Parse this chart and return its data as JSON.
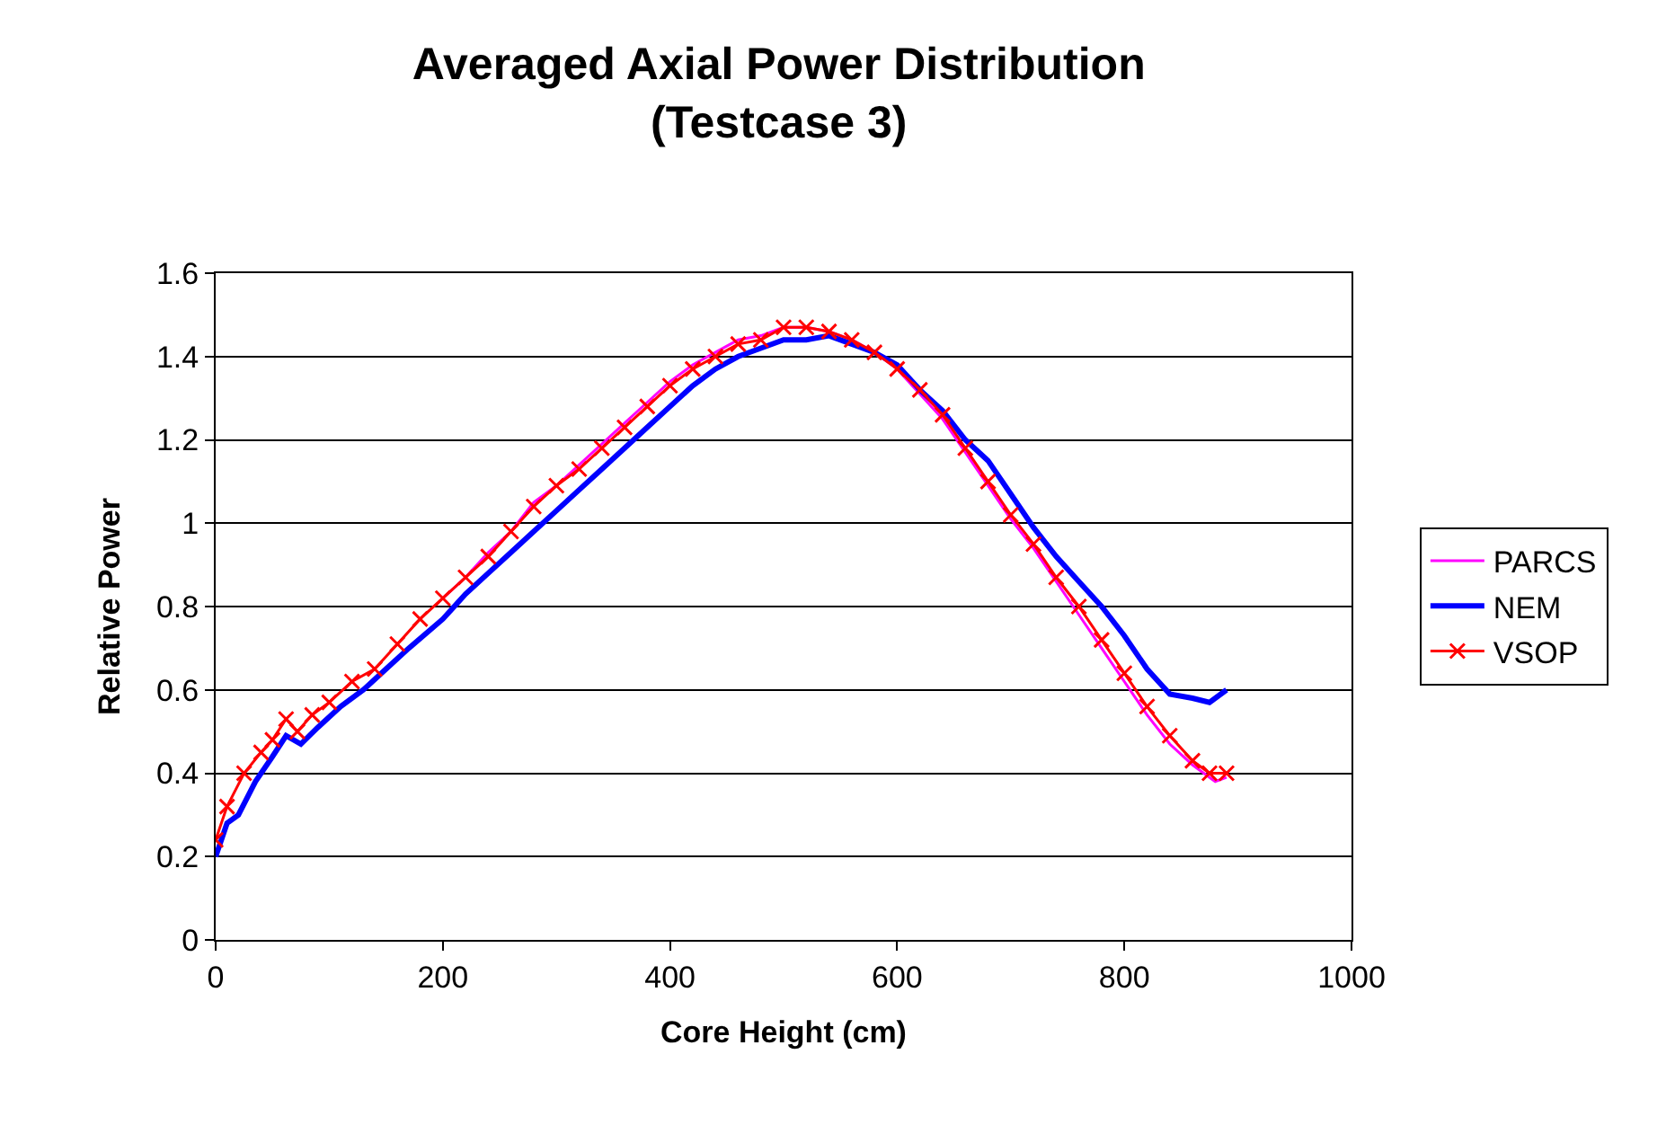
{
  "chart_data": {
    "type": "line",
    "title": "Averaged Axial Power Distribution\n(Testcase 3)",
    "xlabel": "Core Height (cm)",
    "ylabel": "Relative Power",
    "xlim": [
      0,
      1000
    ],
    "xticks": [
      0,
      200,
      400,
      600,
      800,
      1000
    ],
    "ylim": [
      0,
      1.6
    ],
    "yticks": [
      0,
      0.2,
      0.4,
      0.6,
      0.8,
      1,
      1.2,
      1.4,
      1.6
    ],
    "grid": "y",
    "legend": "right",
    "series": [
      {
        "name": "PARCS",
        "color": "#ff00ff",
        "marker": "none",
        "x": [
          200,
          220,
          240,
          260,
          280,
          300,
          320,
          340,
          360,
          380,
          400,
          420,
          440,
          460,
          480,
          500,
          520,
          540,
          560,
          580,
          600,
          620,
          640,
          660,
          680,
          700,
          720,
          740,
          760,
          780,
          800,
          820,
          840,
          860,
          880,
          890
        ],
        "values": [
          0.82,
          0.87,
          0.93,
          0.98,
          1.05,
          1.09,
          1.14,
          1.19,
          1.24,
          1.29,
          1.34,
          1.38,
          1.41,
          1.44,
          1.45,
          1.47,
          1.47,
          1.46,
          1.44,
          1.41,
          1.37,
          1.31,
          1.25,
          1.17,
          1.09,
          1.01,
          0.94,
          0.86,
          0.78,
          0.7,
          0.62,
          0.54,
          0.47,
          0.42,
          0.38,
          0.39
        ]
      },
      {
        "name": "NEM",
        "color": "#0000ff",
        "marker": "none",
        "x": [
          0,
          10,
          20,
          35,
          50,
          62,
          75,
          90,
          110,
          130,
          150,
          170,
          200,
          220,
          240,
          260,
          280,
          300,
          320,
          340,
          360,
          380,
          400,
          420,
          440,
          460,
          480,
          500,
          520,
          540,
          560,
          580,
          600,
          620,
          640,
          660,
          680,
          700,
          720,
          740,
          760,
          780,
          800,
          820,
          840,
          860,
          875,
          890
        ],
        "values": [
          0.2,
          0.28,
          0.3,
          0.38,
          0.44,
          0.49,
          0.47,
          0.51,
          0.56,
          0.6,
          0.65,
          0.7,
          0.77,
          0.83,
          0.88,
          0.93,
          0.98,
          1.03,
          1.08,
          1.13,
          1.18,
          1.23,
          1.28,
          1.33,
          1.37,
          1.4,
          1.42,
          1.44,
          1.44,
          1.45,
          1.43,
          1.41,
          1.38,
          1.32,
          1.27,
          1.2,
          1.15,
          1.07,
          0.99,
          0.92,
          0.86,
          0.8,
          0.73,
          0.65,
          0.59,
          0.58,
          0.57,
          0.6
        ]
      },
      {
        "name": "VSOP",
        "color": "#ff0000",
        "marker": "cross",
        "x": [
          0,
          10,
          25,
          40,
          50,
          62,
          72,
          85,
          100,
          120,
          140,
          160,
          180,
          200,
          220,
          240,
          260,
          280,
          300,
          320,
          340,
          360,
          380,
          400,
          420,
          440,
          460,
          480,
          500,
          520,
          540,
          560,
          580,
          600,
          620,
          640,
          660,
          680,
          700,
          720,
          740,
          760,
          780,
          800,
          820,
          840,
          860,
          875,
          890
        ],
        "values": [
          0.24,
          0.32,
          0.4,
          0.45,
          0.48,
          0.53,
          0.5,
          0.54,
          0.57,
          0.62,
          0.65,
          0.71,
          0.77,
          0.82,
          0.87,
          0.92,
          0.98,
          1.04,
          1.09,
          1.13,
          1.18,
          1.23,
          1.28,
          1.33,
          1.37,
          1.4,
          1.43,
          1.44,
          1.47,
          1.47,
          1.46,
          1.44,
          1.41,
          1.37,
          1.32,
          1.26,
          1.18,
          1.1,
          1.02,
          0.95,
          0.87,
          0.8,
          0.72,
          0.64,
          0.56,
          0.49,
          0.43,
          0.4,
          0.4
        ]
      }
    ]
  }
}
